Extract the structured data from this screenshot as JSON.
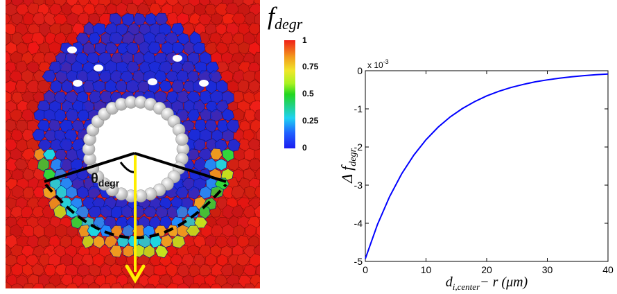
{
  "figure": {
    "left_panel": {
      "angle_label": "θ",
      "angle_label_sub": "degr",
      "colors": {
        "background_cell": "#e8231b",
        "degraded_cell": "#1b2bd8",
        "inclusion": "#cfcfcf",
        "arrow": "#ffee00",
        "lines": "#000000"
      }
    },
    "colorbar": {
      "title_main": "f",
      "title_sub": "degr",
      "ticks": [
        "1",
        "0.75",
        "0.5",
        "0.25",
        "0"
      ]
    }
  },
  "chart_data": {
    "type": "line",
    "x": [
      0,
      2,
      4,
      6,
      8,
      10,
      12,
      14,
      16,
      18,
      20,
      22,
      24,
      26,
      28,
      30,
      32,
      34,
      36,
      38,
      40
    ],
    "series": [
      {
        "values": [
          -4.93,
          -4.03,
          -3.3,
          -2.7,
          -2.21,
          -1.81,
          -1.48,
          -1.21,
          -0.99,
          -0.81,
          -0.66,
          -0.54,
          -0.44,
          -0.36,
          -0.29,
          -0.24,
          -0.195,
          -0.16,
          -0.13,
          -0.105,
          -0.085
        ],
        "color": "#0000ff"
      }
    ],
    "x_ticks": [
      "0",
      "10",
      "20",
      "30",
      "40"
    ],
    "y_ticks": [
      "0",
      "-1",
      "-2",
      "-3",
      "-4",
      "-5"
    ],
    "y_exponent_label": "x 10",
    "y_exponent_power": "-3",
    "xlabel_main": "d",
    "xlabel_sub": "i,center",
    "xlabel_rest": "− r (μm)",
    "ylabel_main": "Δ f",
    "ylabel_sub": "degr",
    "xlim": [
      0,
      40
    ],
    "ylim": [
      -5,
      0
    ],
    "grid": false
  }
}
